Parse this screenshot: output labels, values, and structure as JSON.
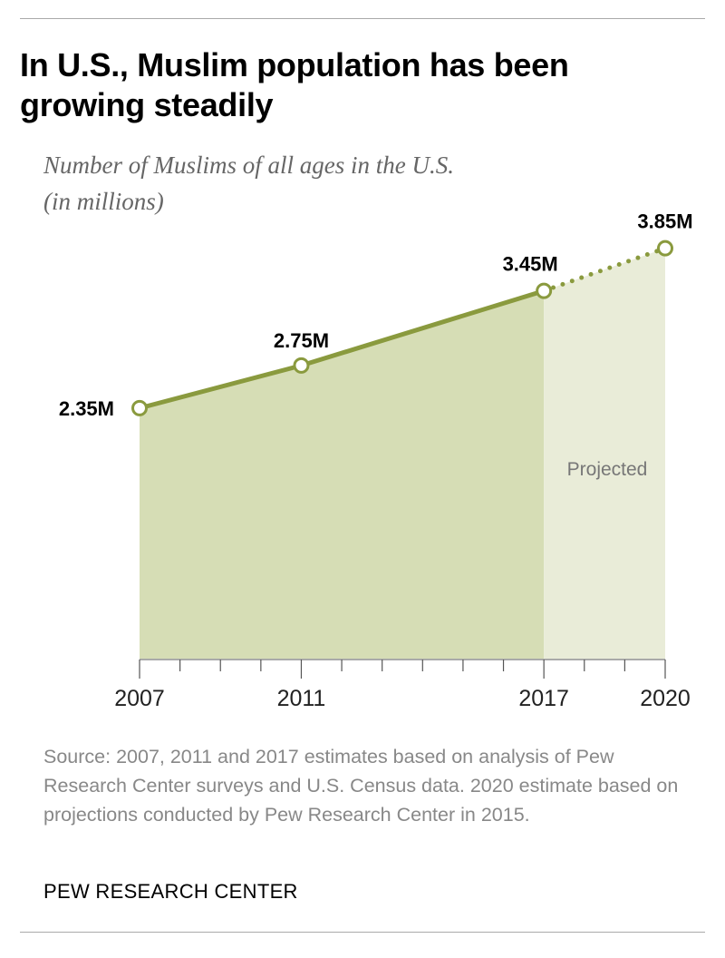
{
  "title": "In U.S., Muslim population has been growing steadily",
  "subtitle_line1": "Number of Muslims of all ages in the U.S.",
  "subtitle_line2": "(in millions)",
  "source": "Source: 2007, 2011 and 2017 estimates based on analysis of Pew Research Center surveys and U.S. Census data. 2020 estimate based on projections conducted by Pew Research Center in 2015.",
  "brand": "PEW RESEARCH CENTER",
  "colors": {
    "line": "#8a9a3e",
    "fill": "#d6ddb5",
    "projected_fill": "#e9ecd8",
    "projected_label": "#777777"
  },
  "chart_data": {
    "type": "area",
    "title": "In U.S., Muslim population has been growing steadily",
    "ylabel": "Number of Muslims of all ages in the U.S. (in millions)",
    "xlabel": "",
    "x": [
      2007,
      2011,
      2017,
      2020
    ],
    "values": [
      2.35,
      2.75,
      3.45,
      3.85
    ],
    "data_labels": [
      "2.35M",
      "2.75M",
      "3.45M",
      "3.85M"
    ],
    "xticks": [
      "2007",
      "2011",
      "2017",
      "2020"
    ],
    "xlim": [
      2007,
      2020
    ],
    "ylim": [
      0,
      3.85
    ],
    "projected_from": 2017,
    "projected_label": "Projected",
    "grid": false
  }
}
